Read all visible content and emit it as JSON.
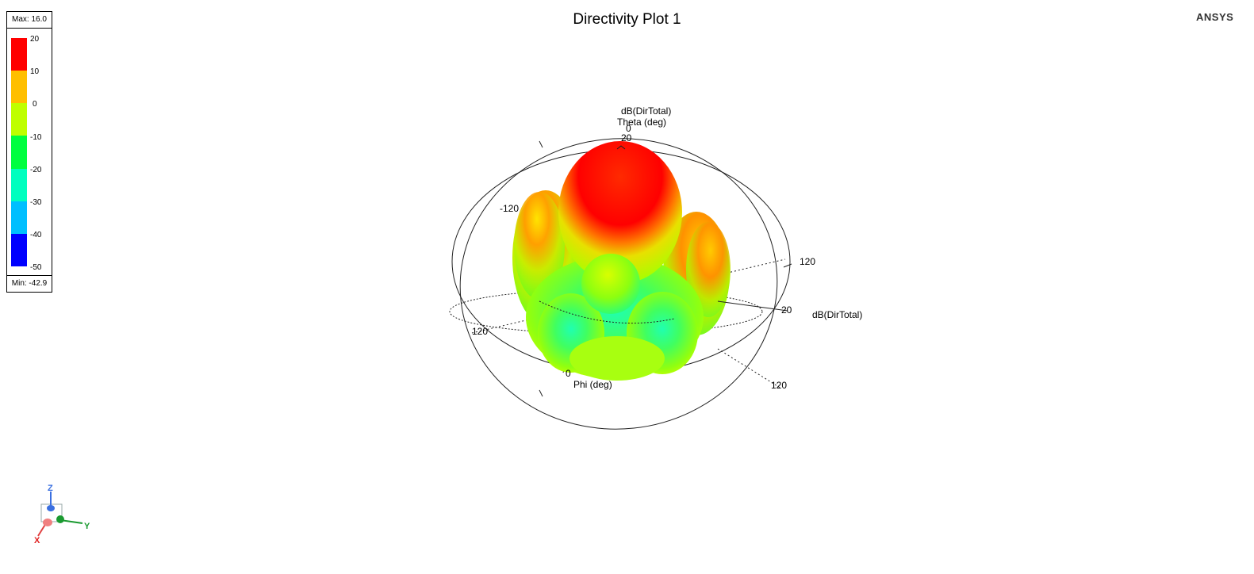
{
  "plot": {
    "title": "Directivity Plot 1"
  },
  "brand": {
    "logo_text": "ANSYS"
  },
  "legend": {
    "max_label": "Max: 16.0",
    "min_label": "Min: -42.9",
    "ticks": [
      "20",
      "10",
      "0",
      "-10",
      "-20",
      "-30",
      "-40",
      "-50"
    ],
    "colors": [
      "#ff0000",
      "#ffbf00",
      "#bfff00",
      "#00ff3f",
      "#00ffbf",
      "#00bfff",
      "#0000ff"
    ]
  },
  "axes": {
    "theta_label": "Theta (deg)",
    "theta_quantity": "dB(DirTotal)",
    "theta_zero": "0",
    "top_value": "20",
    "left_value": "-120",
    "right_value": "120",
    "right_inner_value": "20",
    "right_quantity": "dB(DirTotal)",
    "lower_left_value": "120",
    "bottom_value": "0",
    "phi_label": "Phi (deg)",
    "lower_right_value": "120"
  },
  "triad": {
    "z": "Z",
    "y": "Y",
    "x": "X"
  }
}
